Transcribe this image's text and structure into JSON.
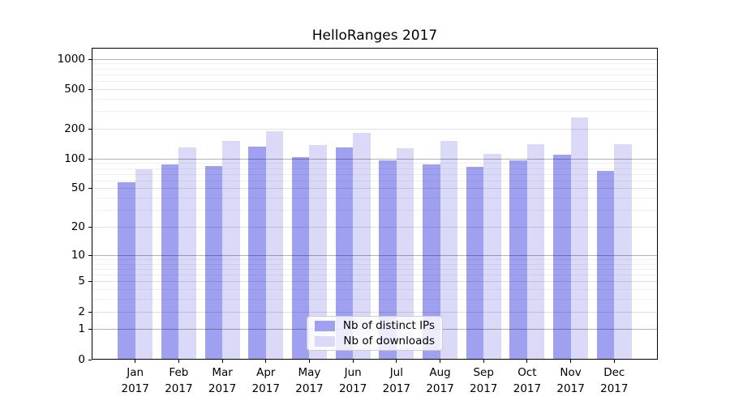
{
  "window": {
    "background": "#ffffff"
  },
  "chart_data": {
    "type": "bar",
    "title": "HelloRanges 2017",
    "categories": [
      "Jan 2017",
      "Feb 2017",
      "Mar 2017",
      "Apr 2017",
      "May 2017",
      "Jun 2017",
      "Jul 2017",
      "Aug 2017",
      "Sep 2017",
      "Oct 2017",
      "Nov 2017",
      "Dec 2017"
    ],
    "series": [
      {
        "name": "Nb of distinct IPs",
        "color": "#a0a0f0",
        "values": [
          58,
          88,
          84,
          133,
          105,
          130,
          97,
          88,
          83,
          97,
          110,
          76
        ]
      },
      {
        "name": "Nb of downloads",
        "color": "#dadaf8",
        "values": [
          79,
          131,
          153,
          189,
          139,
          182,
          128,
          152,
          112,
          141,
          260,
          141
        ]
      }
    ],
    "xlabel": "",
    "ylabel": "",
    "yscale": "symlog(ln(1+v))",
    "ylim": [
      0,
      1300
    ],
    "yticks": [
      0,
      1,
      2,
      5,
      10,
      20,
      50,
      100,
      200,
      500,
      1000
    ],
    "minor_yticks": [
      3,
      4,
      6,
      7,
      8,
      9,
      30,
      40,
      60,
      70,
      80,
      90,
      300,
      400,
      600,
      700,
      800,
      900
    ],
    "grid": true,
    "grid_on_top_of_bars": true,
    "legend_position": "lower center"
  },
  "legend": {
    "items": [
      {
        "label": "Nb of distinct IPs"
      },
      {
        "label": "Nb of downloads"
      }
    ]
  },
  "colors": {
    "bar_distinct_ips": "#a0a0f0",
    "bar_downloads": "#dadaf8",
    "grid_decade": "rgba(0,0,0,0.30)",
    "grid_major": "rgba(0,0,0,0.12)",
    "grid_minor": "rgba(0,0,0,0.06)",
    "axis": "#000000",
    "text": "#000000",
    "legend_border": "#cccccc",
    "legend_background": "rgba(255,255,255,0.8)"
  }
}
